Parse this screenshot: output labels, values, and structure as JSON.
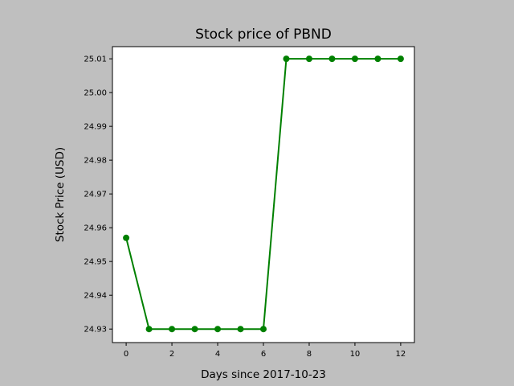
{
  "chart_data": {
    "type": "line",
    "title": "Stock price of PBND",
    "xlabel": "Days since 2017-10-23",
    "ylabel": "Stock Price (USD)",
    "xlim": [
      -0.6,
      12.6
    ],
    "ylim": [
      24.926,
      25.0136
    ],
    "xticks": [
      0,
      2,
      4,
      6,
      8,
      10,
      12
    ],
    "yticks": [
      24.93,
      24.94,
      24.95,
      24.96,
      24.97,
      24.98,
      24.99,
      25.0,
      25.01
    ],
    "ytick_labels": [
      "24.93",
      "24.94",
      "24.95",
      "24.96",
      "24.97",
      "24.98",
      "24.99",
      "25.00",
      "25.01"
    ],
    "grid": false,
    "series": [
      {
        "color": "#008000",
        "marker": "circle",
        "x": [
          0,
          1,
          2,
          3,
          4,
          5,
          6,
          7,
          8,
          9,
          10,
          11,
          12
        ],
        "y": [
          24.957,
          24.93,
          24.93,
          24.93,
          24.93,
          24.93,
          24.93,
          25.01,
          25.01,
          25.01,
          25.01,
          25.01,
          25.01
        ]
      }
    ]
  }
}
